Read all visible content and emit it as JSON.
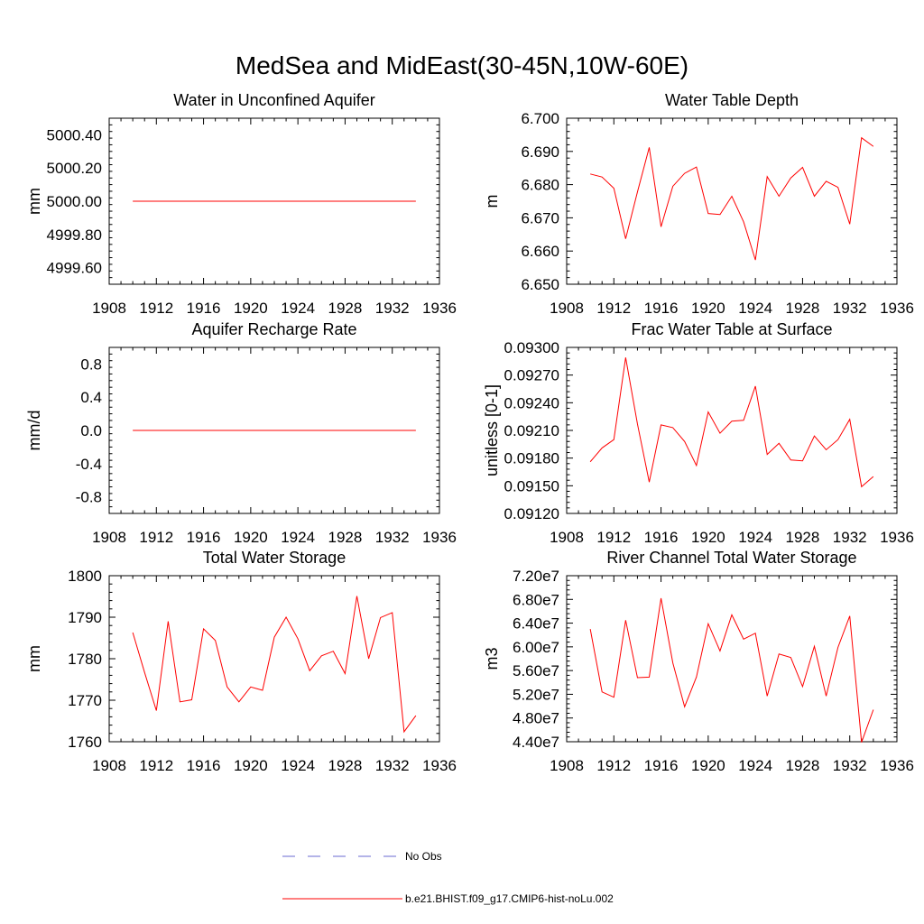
{
  "title": "MedSea and MidEast(30-45N,10W-60E)",
  "legend": [
    {
      "label": "No Obs",
      "color": "#6a6ad0",
      "style": "dashed"
    },
    {
      "label": "b.e21.BHIST.f09_g17.CMIP6-hist-noLu.002",
      "color": "#ff0000",
      "style": "solid"
    }
  ],
  "chart_data": [
    {
      "type": "line",
      "title": "Water in Unconfined Aquifer",
      "ylabel": "mm",
      "xlim": [
        1908,
        1936
      ],
      "ylim": [
        4999.5,
        5000.5
      ],
      "xticks": [
        1908,
        1912,
        1916,
        1920,
        1924,
        1928,
        1932,
        1936
      ],
      "yticks": [
        4999.6,
        4999.8,
        5000.0,
        5000.2,
        5000.4
      ],
      "ytick_labels": [
        "4999.60",
        "4999.80",
        "5000.00",
        "5000.20",
        "5000.40"
      ],
      "series": [
        {
          "color": "#ff0000",
          "x": [
            1910,
            1911,
            1912,
            1913,
            1914,
            1915,
            1916,
            1917,
            1918,
            1919,
            1920,
            1921,
            1922,
            1923,
            1924,
            1925,
            1926,
            1927,
            1928,
            1929,
            1930,
            1931,
            1932,
            1933,
            1934
          ],
          "y": [
            5000,
            5000,
            5000,
            5000,
            5000,
            5000,
            5000,
            5000,
            5000,
            5000,
            5000,
            5000,
            5000,
            5000,
            5000,
            5000,
            5000,
            5000,
            5000,
            5000,
            5000,
            5000,
            5000,
            5000,
            5000
          ]
        }
      ]
    },
    {
      "type": "line",
      "title": "Water Table Depth",
      "ylabel": "m",
      "xlim": [
        1908,
        1936
      ],
      "ylim": [
        6.65,
        6.7
      ],
      "xticks": [
        1908,
        1912,
        1916,
        1920,
        1924,
        1928,
        1932,
        1936
      ],
      "yticks": [
        6.65,
        6.66,
        6.67,
        6.68,
        6.69,
        6.7
      ],
      "ytick_labels": [
        "6.650",
        "6.660",
        "6.670",
        "6.680",
        "6.690",
        "6.700"
      ],
      "series": [
        {
          "color": "#ff0000",
          "x": [
            1910,
            1911,
            1912,
            1913,
            1914,
            1915,
            1916,
            1917,
            1918,
            1919,
            1920,
            1921,
            1922,
            1923,
            1924,
            1925,
            1926,
            1927,
            1928,
            1929,
            1930,
            1931,
            1932,
            1933,
            1934
          ],
          "y": [
            6.6832,
            6.6823,
            6.6789,
            6.6637,
            6.6778,
            6.6912,
            6.6673,
            6.6795,
            6.6834,
            6.6853,
            6.6713,
            6.671,
            6.6765,
            6.6688,
            6.6573,
            6.6824,
            6.6765,
            6.682,
            6.6852,
            6.6765,
            6.681,
            6.6792,
            6.6681,
            6.6941,
            6.6915
          ]
        }
      ]
    },
    {
      "type": "line",
      "title": "Aquifer Recharge Rate",
      "ylabel": "mm/d",
      "xlim": [
        1908,
        1936
      ],
      "ylim": [
        -1.0,
        1.0
      ],
      "xticks": [
        1908,
        1912,
        1916,
        1920,
        1924,
        1928,
        1932,
        1936
      ],
      "yticks": [
        -0.8,
        -0.4,
        0.0,
        0.4,
        0.8
      ],
      "ytick_labels": [
        "-0.8",
        "-0.4",
        "0.0",
        "0.4",
        "0.8"
      ],
      "series": [
        {
          "color": "#ff0000",
          "x": [
            1910,
            1911,
            1912,
            1913,
            1914,
            1915,
            1916,
            1917,
            1918,
            1919,
            1920,
            1921,
            1922,
            1923,
            1924,
            1925,
            1926,
            1927,
            1928,
            1929,
            1930,
            1931,
            1932,
            1933,
            1934
          ],
          "y": [
            0,
            0,
            0,
            0,
            0,
            0,
            0,
            0,
            0,
            0,
            0,
            0,
            0,
            0,
            0,
            0,
            0,
            0,
            0,
            0,
            0,
            0,
            0,
            0,
            0
          ]
        }
      ]
    },
    {
      "type": "line",
      "title": "Frac Water Table at Surface",
      "ylabel": "unitless [0-1]",
      "xlim": [
        1908,
        1936
      ],
      "ylim": [
        0.0912,
        0.093
      ],
      "xticks": [
        1908,
        1912,
        1916,
        1920,
        1924,
        1928,
        1932,
        1936
      ],
      "yticks": [
        0.0912,
        0.0915,
        0.0918,
        0.0921,
        0.0924,
        0.0927,
        0.093
      ],
      "ytick_labels": [
        "0.09120",
        "0.09150",
        "0.09180",
        "0.09210",
        "0.09240",
        "0.09270",
        "0.09300"
      ],
      "series": [
        {
          "color": "#ff0000",
          "x": [
            1910,
            1911,
            1912,
            1913,
            1914,
            1915,
            1916,
            1917,
            1918,
            1919,
            1920,
            1921,
            1922,
            1923,
            1924,
            1925,
            1926,
            1927,
            1928,
            1929,
            1930,
            1931,
            1932,
            1933,
            1934
          ],
          "y": [
            0.09176,
            0.09191,
            0.092,
            0.09289,
            0.09217,
            0.09154,
            0.09216,
            0.09213,
            0.09198,
            0.09172,
            0.0923,
            0.09207,
            0.0922,
            0.09221,
            0.09258,
            0.09184,
            0.09196,
            0.09178,
            0.09177,
            0.09204,
            0.09189,
            0.092,
            0.09222,
            0.09149,
            0.0916
          ]
        }
      ]
    },
    {
      "type": "line",
      "title": "Total Water Storage",
      "ylabel": "mm",
      "xlim": [
        1908,
        1936
      ],
      "ylim": [
        1760,
        1800
      ],
      "xticks": [
        1908,
        1912,
        1916,
        1920,
        1924,
        1928,
        1932,
        1936
      ],
      "yticks": [
        1760,
        1770,
        1780,
        1790,
        1800
      ],
      "ytick_labels": [
        "1760",
        "1770",
        "1780",
        "1790",
        "1800"
      ],
      "series": [
        {
          "color": "#ff0000",
          "x": [
            1910,
            1911,
            1912,
            1913,
            1914,
            1915,
            1916,
            1917,
            1918,
            1919,
            1920,
            1921,
            1922,
            1923,
            1924,
            1925,
            1926,
            1927,
            1928,
            1929,
            1930,
            1931,
            1932,
            1933,
            1934
          ],
          "y": [
            1786.3,
            1776.7,
            1767.5,
            1789.0,
            1769.6,
            1770.1,
            1787.2,
            1784.4,
            1773.2,
            1769.6,
            1773.2,
            1772.4,
            1785.2,
            1790.0,
            1784.8,
            1777.1,
            1780.7,
            1781.8,
            1776.4,
            1795.1,
            1780.0,
            1789.9,
            1791.1,
            1762.4,
            1766.3
          ]
        }
      ]
    },
    {
      "type": "line",
      "title": "River Channel Total Water Storage",
      "ylabel": "m3",
      "xlim": [
        1908,
        1936
      ],
      "ylim": [
        44000000,
        72000000
      ],
      "xticks": [
        1908,
        1912,
        1916,
        1920,
        1924,
        1928,
        1932,
        1936
      ],
      "yticks": [
        44000000,
        48000000,
        52000000,
        56000000,
        60000000,
        64000000,
        68000000,
        72000000
      ],
      "ytick_labels": [
        "4.40e7",
        "4.80e7",
        "5.20e7",
        "5.60e7",
        "6.00e7",
        "6.40e7",
        "6.80e7",
        "7.20e7"
      ],
      "series": [
        {
          "color": "#ff0000",
          "x": [
            1910,
            1911,
            1912,
            1913,
            1914,
            1915,
            1916,
            1917,
            1918,
            1919,
            1920,
            1921,
            1922,
            1923,
            1924,
            1925,
            1926,
            1927,
            1928,
            1929,
            1930,
            1931,
            1932,
            1933,
            1934
          ],
          "y": [
            63000000,
            52400000,
            51500000,
            64500000,
            54800000,
            54900000,
            68200000,
            57300000,
            49900000,
            54900000,
            63900000,
            59300000,
            65400000,
            61300000,
            62300000,
            51700000,
            58800000,
            58200000,
            53300000,
            60100000,
            51700000,
            59900000,
            65200000,
            43900000,
            49400000
          ]
        }
      ]
    }
  ]
}
